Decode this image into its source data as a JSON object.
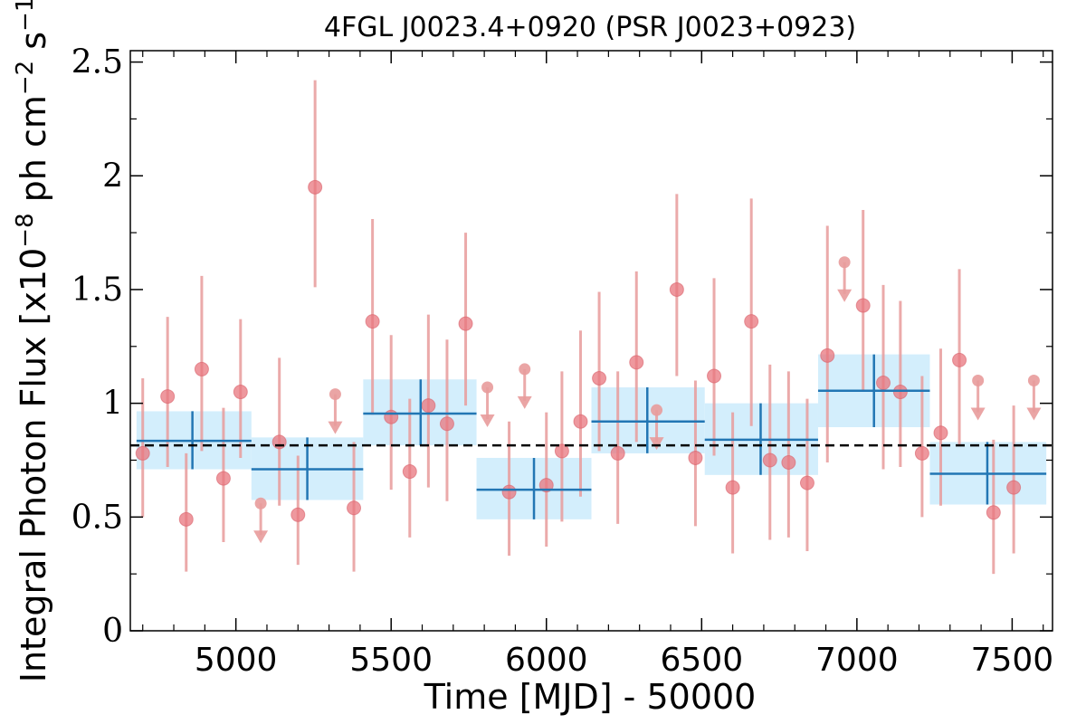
{
  "chart_data": {
    "type": "scatter",
    "title": "4FGL J0023.4+0920 (PSR J0023+0923)",
    "xlabel": "Time [MJD] - 50000",
    "ylabel": {
      "prefix": "Integral Photon Flux [x10",
      "exp1": "−8",
      "mid": " ph cm",
      "exp2": "−2",
      "mid2": " s",
      "exp3": "−1",
      "suffix": "]"
    },
    "xlim": [
      4660,
      7630
    ],
    "ylim": [
      0,
      2.55
    ],
    "xticks": [
      {
        "value": 5000,
        "label": "5000"
      },
      {
        "value": 5500,
        "label": "5500"
      },
      {
        "value": 6000,
        "label": "6000"
      },
      {
        "value": 6500,
        "label": "6500"
      },
      {
        "value": 7000,
        "label": "7000"
      },
      {
        "value": 7500,
        "label": "7500"
      }
    ],
    "yticks": [
      {
        "value": 0,
        "label": "0"
      },
      {
        "value": 0.5,
        "label": "0.5"
      },
      {
        "value": 1,
        "label": "1"
      },
      {
        "value": 1.5,
        "label": "1.5"
      },
      {
        "value": 2,
        "label": "2"
      },
      {
        "value": 2.5,
        "label": "2.5"
      }
    ],
    "mean_flux": 0.815,
    "colors": {
      "point": "#e8757d",
      "errorbar": "#e89b9b",
      "bin_fill": "#d3eefc",
      "bin_line": "#2276b4",
      "mean_line": "#000000"
    },
    "short_bins": [
      {
        "x": 4700,
        "y": 0.78,
        "lo": 0.5,
        "hi": 1.11
      },
      {
        "x": 4780,
        "y": 1.03,
        "lo": 0.72,
        "hi": 1.38
      },
      {
        "x": 4840,
        "y": 0.49,
        "lo": 0.26,
        "hi": 0.78
      },
      {
        "x": 4890,
        "y": 1.15,
        "lo": 0.79,
        "hi": 1.56
      },
      {
        "x": 4960,
        "y": 0.67,
        "lo": 0.39,
        "hi": 0.98
      },
      {
        "x": 5015,
        "y": 1.05,
        "lo": 0.76,
        "hi": 1.37
      },
      {
        "x": 5140,
        "y": 0.83,
        "lo": 0.55,
        "hi": 1.2
      },
      {
        "x": 5200,
        "y": 0.51,
        "lo": 0.29,
        "hi": 0.77
      },
      {
        "x": 5255,
        "y": 1.95,
        "lo": 1.51,
        "hi": 2.42
      },
      {
        "x": 5380,
        "y": 0.54,
        "lo": 0.26,
        "hi": 0.83
      },
      {
        "x": 5440,
        "y": 1.36,
        "lo": 0.95,
        "hi": 1.81
      },
      {
        "x": 5500,
        "y": 0.94,
        "lo": 0.62,
        "hi": 1.3
      },
      {
        "x": 5560,
        "y": 0.7,
        "lo": 0.41,
        "hi": 1.02
      },
      {
        "x": 5620,
        "y": 0.99,
        "lo": 0.63,
        "hi": 1.39
      },
      {
        "x": 5680,
        "y": 0.91,
        "lo": 0.57,
        "hi": 1.28
      },
      {
        "x": 5740,
        "y": 1.35,
        "lo": 0.99,
        "hi": 1.75
      },
      {
        "x": 5880,
        "y": 0.61,
        "lo": 0.33,
        "hi": 0.92
      },
      {
        "x": 6000,
        "y": 0.64,
        "lo": 0.37,
        "hi": 0.96
      },
      {
        "x": 6050,
        "y": 0.79,
        "lo": 0.48,
        "hi": 1.14
      },
      {
        "x": 6110,
        "y": 0.92,
        "lo": 0.59,
        "hi": 1.32
      },
      {
        "x": 6170,
        "y": 1.11,
        "lo": 0.79,
        "hi": 1.49
      },
      {
        "x": 6230,
        "y": 0.78,
        "lo": 0.47,
        "hi": 1.14
      },
      {
        "x": 6290,
        "y": 1.18,
        "lo": 0.83,
        "hi": 1.58
      },
      {
        "x": 6420,
        "y": 1.5,
        "lo": 1.12,
        "hi": 1.92
      },
      {
        "x": 6480,
        "y": 0.76,
        "lo": 0.46,
        "hi": 1.1
      },
      {
        "x": 6540,
        "y": 1.12,
        "lo": 0.77,
        "hi": 1.55
      },
      {
        "x": 6600,
        "y": 0.63,
        "lo": 0.34,
        "hi": 0.96
      },
      {
        "x": 6660,
        "y": 1.36,
        "lo": 0.9,
        "hi": 1.9
      },
      {
        "x": 6720,
        "y": 0.75,
        "lo": 0.4,
        "hi": 1.17
      },
      {
        "x": 6780,
        "y": 0.74,
        "lo": 0.41,
        "hi": 1.14
      },
      {
        "x": 6840,
        "y": 0.65,
        "lo": 0.35,
        "hi": 1.02
      },
      {
        "x": 6905,
        "y": 1.21,
        "lo": 0.74,
        "hi": 1.78
      },
      {
        "x": 7020,
        "y": 1.43,
        "lo": 1.05,
        "hi": 1.85
      },
      {
        "x": 7085,
        "y": 1.09,
        "lo": 0.71,
        "hi": 1.52
      },
      {
        "x": 7140,
        "y": 1.05,
        "lo": 0.72,
        "hi": 1.45
      },
      {
        "x": 7210,
        "y": 0.78,
        "lo": 0.5,
        "hi": 1.12
      },
      {
        "x": 7270,
        "y": 0.87,
        "lo": 0.55,
        "hi": 1.24
      },
      {
        "x": 7330,
        "y": 1.19,
        "lo": 0.82,
        "hi": 1.59
      },
      {
        "x": 7440,
        "y": 0.52,
        "lo": 0.25,
        "hi": 0.84
      },
      {
        "x": 7505,
        "y": 0.63,
        "lo": 0.34,
        "hi": 0.99
      }
    ],
    "upper_limits": [
      {
        "x": 5080,
        "y": 0.56
      },
      {
        "x": 5320,
        "y": 1.04
      },
      {
        "x": 5810,
        "y": 1.07
      },
      {
        "x": 5930,
        "y": 1.15
      },
      {
        "x": 6355,
        "y": 0.97
      },
      {
        "x": 6960,
        "y": 1.62
      },
      {
        "x": 7390,
        "y": 1.1
      },
      {
        "x": 7570,
        "y": 1.1
      }
    ],
    "long_bins": [
      {
        "x0": 4680,
        "x1": 5050,
        "y": 0.835,
        "lo": 0.71,
        "hi": 0.965,
        "xc": 4860
      },
      {
        "x0": 5050,
        "x1": 5410,
        "y": 0.71,
        "lo": 0.575,
        "hi": 0.85,
        "xc": 5230
      },
      {
        "x0": 5410,
        "x1": 5775,
        "y": 0.955,
        "lo": 0.815,
        "hi": 1.105,
        "xc": 5595
      },
      {
        "x0": 5775,
        "x1": 6145,
        "y": 0.62,
        "lo": 0.49,
        "hi": 0.76,
        "xc": 5960
      },
      {
        "x0": 6145,
        "x1": 6510,
        "y": 0.92,
        "lo": 0.78,
        "hi": 1.07,
        "xc": 6325
      },
      {
        "x0": 6510,
        "x1": 6875,
        "y": 0.84,
        "lo": 0.685,
        "hi": 1.0,
        "xc": 6690
      },
      {
        "x0": 6875,
        "x1": 7235,
        "y": 1.055,
        "lo": 0.895,
        "hi": 1.215,
        "xc": 7055
      },
      {
        "x0": 7235,
        "x1": 7610,
        "y": 0.69,
        "lo": 0.555,
        "hi": 0.83,
        "xc": 7420
      }
    ]
  }
}
